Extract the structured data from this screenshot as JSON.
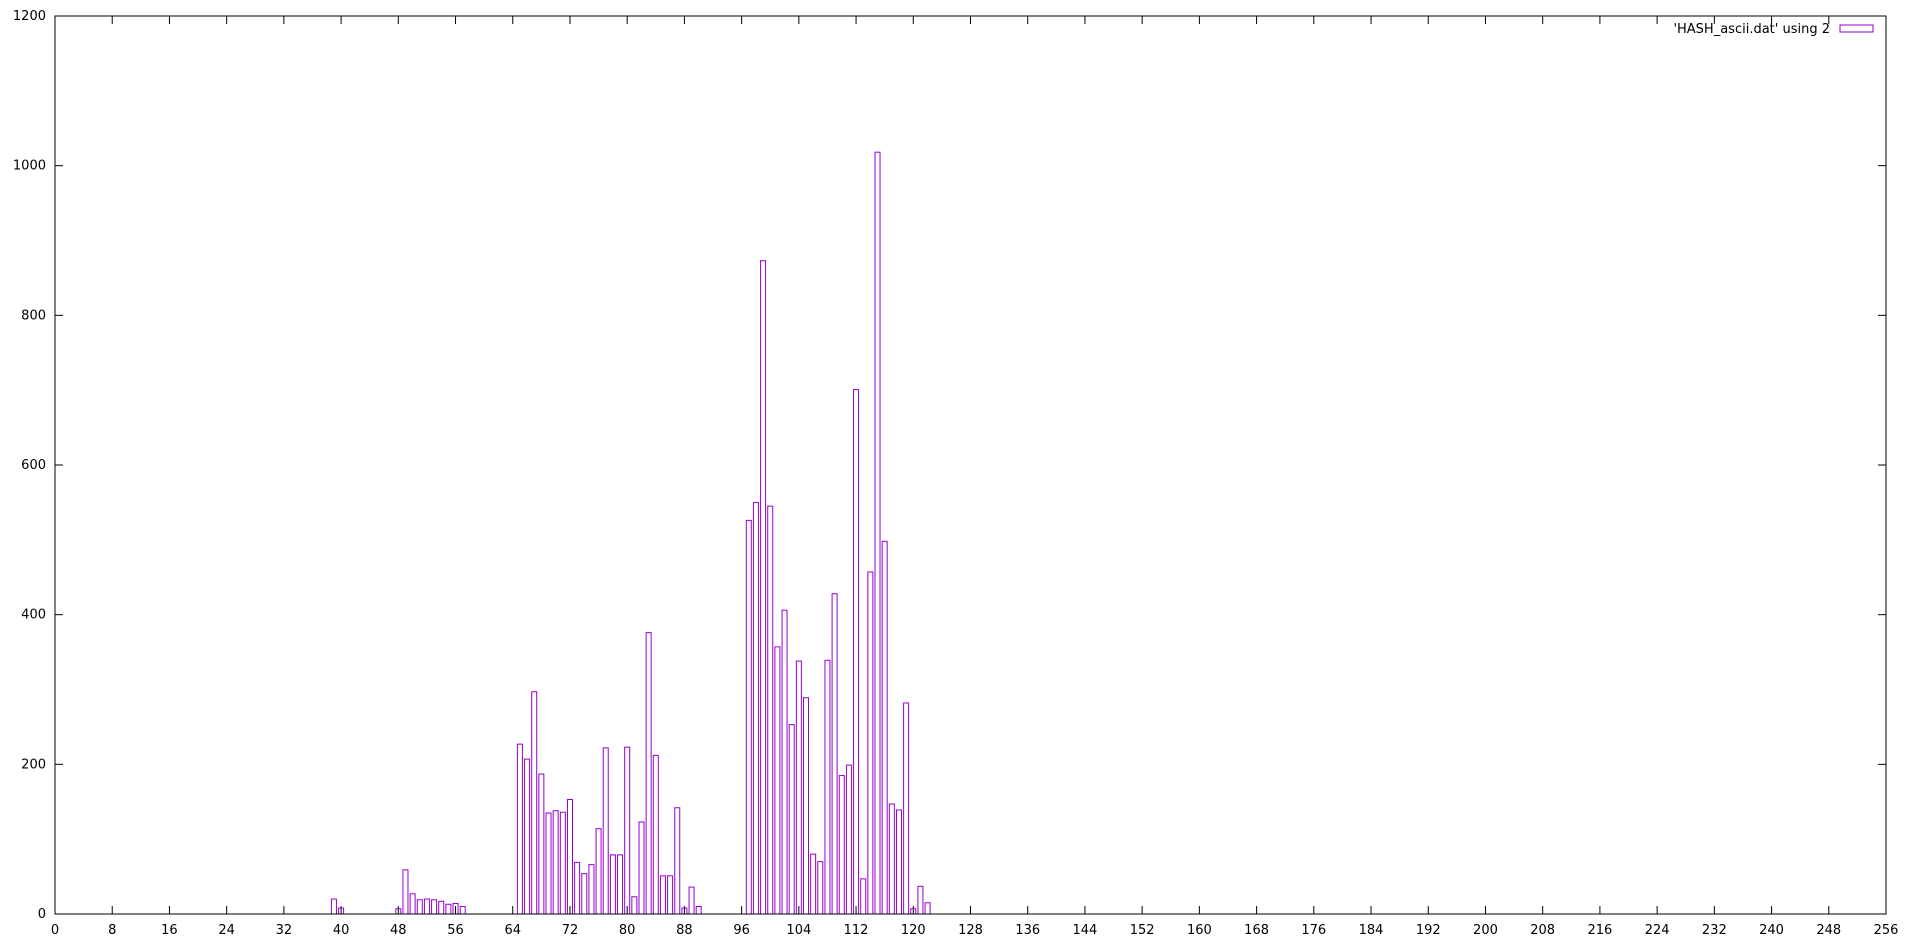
{
  "chart_data": {
    "type": "bar",
    "title": "",
    "xlabel": "",
    "ylabel": "",
    "xlim": [
      0,
      256
    ],
    "ylim": [
      0,
      1200
    ],
    "x_ticks": [
      0,
      8,
      16,
      24,
      32,
      40,
      48,
      56,
      64,
      72,
      80,
      88,
      96,
      104,
      112,
      120,
      128,
      136,
      144,
      152,
      160,
      168,
      176,
      184,
      192,
      200,
      208,
      216,
      224,
      232,
      240,
      248,
      256
    ],
    "y_ticks": [
      0,
      200,
      400,
      600,
      800,
      1000,
      1200
    ],
    "grid": false,
    "legend": {
      "position": "top-right",
      "entries": [
        "'HASH_ascii.dat' using 2"
      ]
    },
    "bar_color": "#9400d3",
    "series": [
      {
        "name": "'HASH_ascii.dat' using 2",
        "x": [
          39,
          40,
          48,
          49,
          50,
          51,
          52,
          53,
          54,
          55,
          56,
          57,
          65,
          66,
          67,
          68,
          69,
          70,
          71,
          72,
          73,
          74,
          75,
          76,
          77,
          78,
          79,
          80,
          81,
          82,
          83,
          84,
          85,
          86,
          87,
          88,
          89,
          90,
          97,
          98,
          99,
          100,
          101,
          102,
          103,
          104,
          105,
          106,
          107,
          108,
          109,
          110,
          111,
          112,
          113,
          114,
          115,
          116,
          117,
          118,
          119,
          120,
          121,
          122
        ],
        "values": [
          20,
          8,
          7,
          59,
          27,
          19,
          20,
          19,
          17,
          13,
          14,
          10,
          227,
          207,
          297,
          187,
          135,
          138,
          136,
          153,
          69,
          54,
          66,
          114,
          222,
          79,
          79,
          223,
          23,
          123,
          376,
          212,
          51,
          51,
          142,
          8,
          36,
          10,
          526,
          550,
          873,
          545,
          357,
          406,
          253,
          338,
          289,
          80,
          70,
          339,
          428,
          185,
          199,
          701,
          47,
          457,
          1018,
          498,
          147,
          139,
          282,
          7,
          37,
          15
        ]
      }
    ]
  }
}
